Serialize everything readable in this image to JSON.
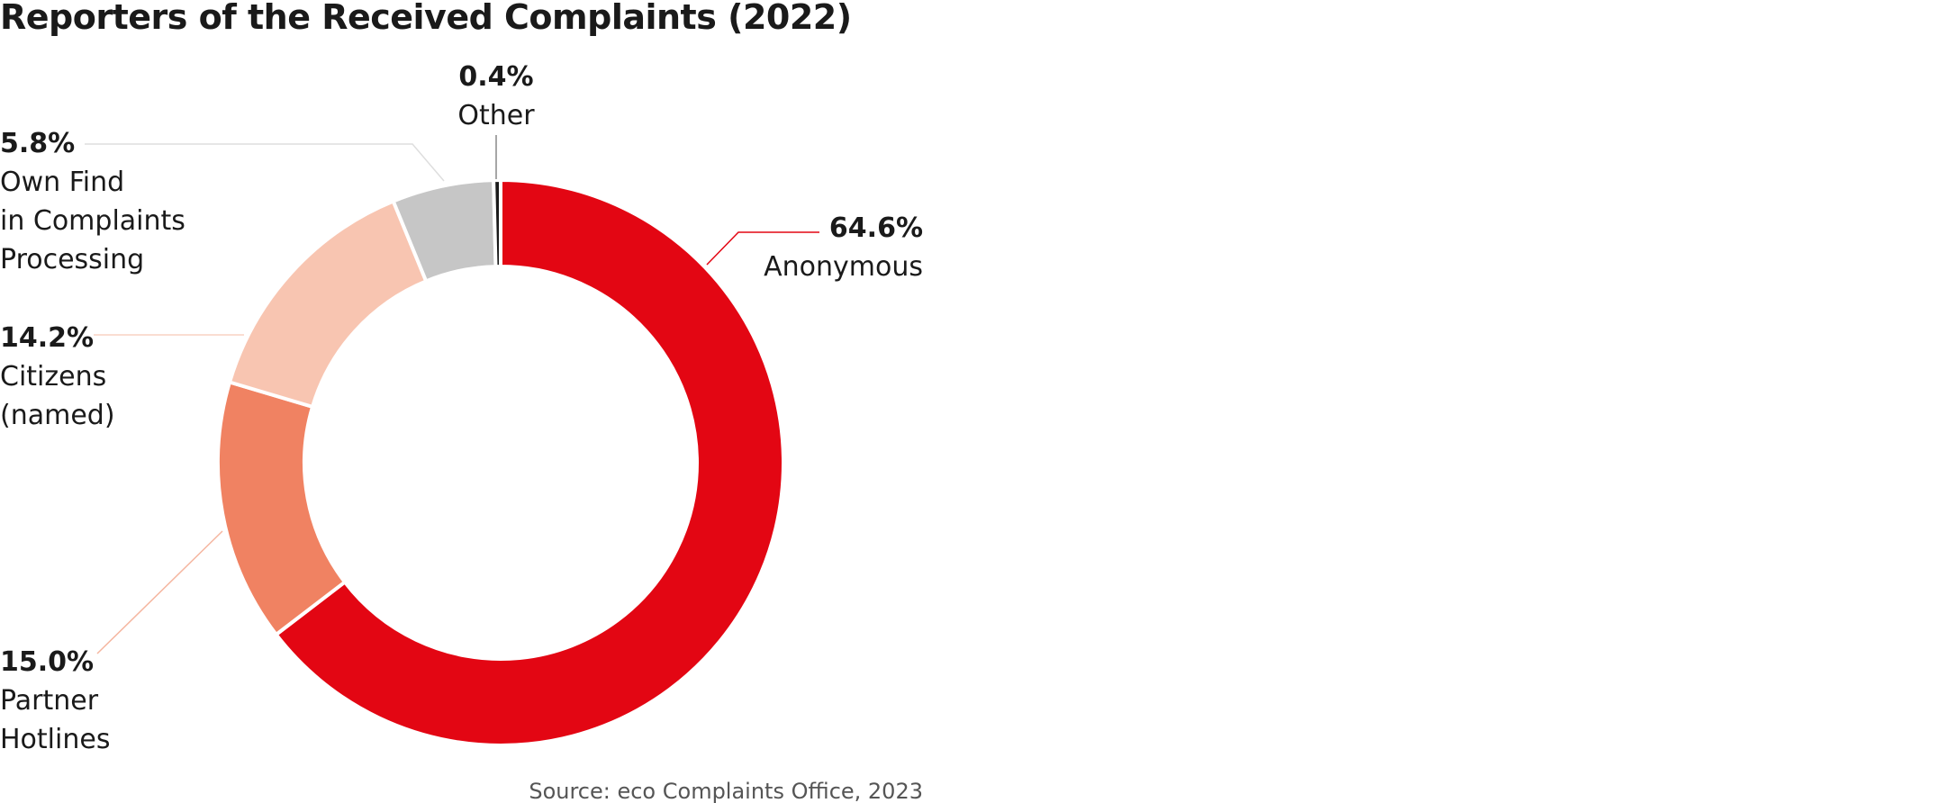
{
  "chart_data": {
    "type": "pie",
    "title": "Reporters of the Received Complaints (2022)",
    "categories": [
      "Anonymous",
      "Partner\nHotlines",
      "Citizens\n(named)",
      "Own Find\nin Complaints\nProcessing",
      "Other"
    ],
    "values": [
      64.6,
      15.0,
      14.2,
      5.8,
      0.4
    ],
    "value_labels": [
      "64.6%",
      "15.0%",
      "14.2%",
      "5.8%",
      "0.4%"
    ],
    "colors": [
      "#e30613",
      "#f08262",
      "#f8c5b1",
      "#c6c6c6",
      "#1a1a1a"
    ],
    "donut": true,
    "source": "Source: eco Complaints Office, 2023"
  }
}
